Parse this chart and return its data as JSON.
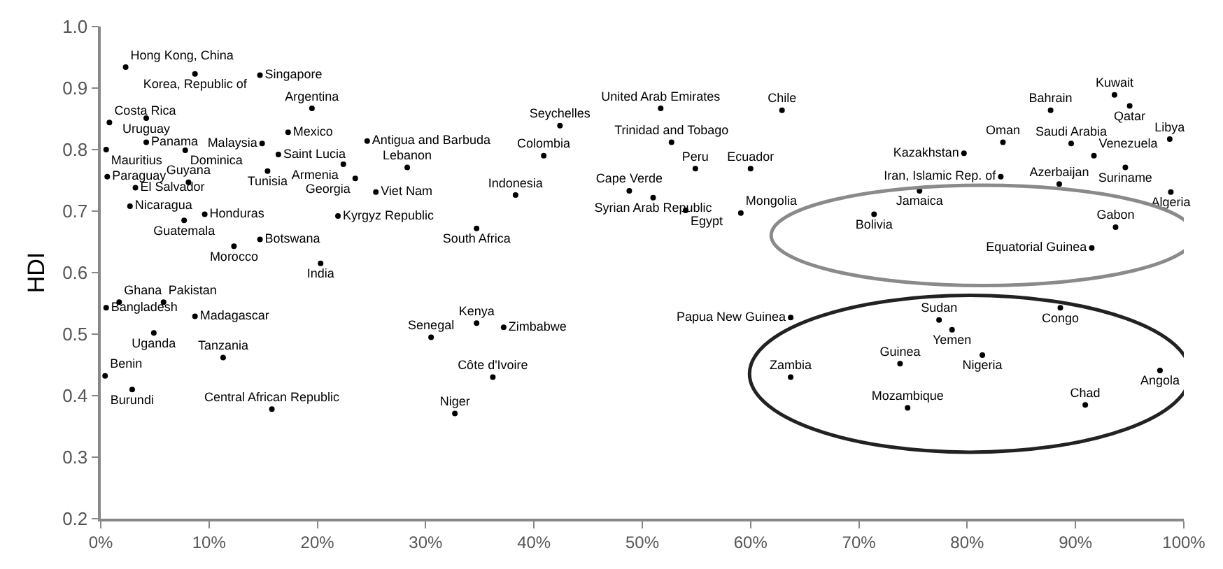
{
  "chart_data": {
    "type": "scatter",
    "ylabel": "HDI",
    "marker": "circle",
    "legend": false,
    "xlim": [
      0,
      100
    ],
    "xticks": [
      {
        "value": 0,
        "label": "0%"
      },
      {
        "value": 10,
        "label": "10%"
      },
      {
        "value": 20,
        "label": "20%"
      },
      {
        "value": 30,
        "label": "30%"
      },
      {
        "value": 40,
        "label": "40%"
      },
      {
        "value": 50,
        "label": "50%"
      },
      {
        "value": 60,
        "label": "60%"
      },
      {
        "value": 70,
        "label": "70%"
      },
      {
        "value": 80,
        "label": "80%"
      },
      {
        "value": 90,
        "label": "90%"
      },
      {
        "value": 100,
        "label": "100%"
      }
    ],
    "ylim": [
      0.2,
      1.0
    ],
    "yticks": [
      {
        "value": 0.2,
        "label": "0.2"
      },
      {
        "value": 0.3,
        "label": "0.3"
      },
      {
        "value": 0.4,
        "label": "0.4"
      },
      {
        "value": 0.5,
        "label": "0.5"
      },
      {
        "value": 0.6,
        "label": "0.6"
      },
      {
        "value": 0.7,
        "label": "0.7"
      },
      {
        "value": 0.8,
        "label": "0.8"
      },
      {
        "value": 0.9,
        "label": "0.9"
      },
      {
        "value": 1.0,
        "label": "1.0"
      }
    ],
    "series": [
      {
        "name": "Hong Kong, China",
        "color": "#000000",
        "x": [
          2.3
        ],
        "values": [
          0.934
        ]
      },
      {
        "name": "Korea, Republic of",
        "color": "#000000",
        "x": [
          8.7
        ],
        "values": [
          0.923
        ]
      },
      {
        "name": "Singapore",
        "color": "#000000",
        "x": [
          14.7
        ],
        "values": [
          0.921
        ]
      },
      {
        "name": "Argentina",
        "color": "#000000",
        "x": [
          19.5
        ],
        "values": [
          0.867
        ]
      },
      {
        "name": "Costa Rica",
        "color": "#000000",
        "x": [
          0.8
        ],
        "values": [
          0.844
        ]
      },
      {
        "name": "Uruguay",
        "color": "#000000",
        "x": [
          4.2
        ],
        "values": [
          0.851
        ]
      },
      {
        "name": "Panama",
        "color": "#000000",
        "x": [
          4.2
        ],
        "values": [
          0.812
        ]
      },
      {
        "name": "Mauritius",
        "color": "#000000",
        "x": [
          0.5
        ],
        "values": [
          0.8
        ]
      },
      {
        "name": "Dominica",
        "color": "#000000",
        "x": [
          7.8
        ],
        "values": [
          0.799
        ]
      },
      {
        "name": "Mexico",
        "color": "#000000",
        "x": [
          17.3
        ],
        "values": [
          0.828
        ]
      },
      {
        "name": "Malaysia",
        "color": "#000000",
        "x": [
          14.9
        ],
        "values": [
          0.81
        ]
      },
      {
        "name": "Antigua and Barbuda",
        "color": "#000000",
        "x": [
          24.6
        ],
        "values": [
          0.814
        ]
      },
      {
        "name": "Saint Lucia",
        "color": "#000000",
        "x": [
          16.4
        ],
        "values": [
          0.792
        ]
      },
      {
        "name": "Tunisia",
        "color": "#000000",
        "x": [
          15.4
        ],
        "values": [
          0.765
        ]
      },
      {
        "name": "Armenia",
        "color": "#000000",
        "x": [
          22.4
        ],
        "values": [
          0.776
        ]
      },
      {
        "name": "Lebanon",
        "color": "#000000",
        "x": [
          28.3
        ],
        "values": [
          0.771
        ]
      },
      {
        "name": "Georgia",
        "color": "#000000",
        "x": [
          23.5
        ],
        "values": [
          0.753
        ]
      },
      {
        "name": "Viet Nam",
        "color": "#000000",
        "x": [
          25.4
        ],
        "values": [
          0.731
        ]
      },
      {
        "name": "Paraguay",
        "color": "#000000",
        "x": [
          0.6
        ],
        "values": [
          0.756
        ]
      },
      {
        "name": "Guyana",
        "color": "#000000",
        "x": [
          8.1
        ],
        "values": [
          0.747
        ]
      },
      {
        "name": "El Salvador",
        "color": "#000000",
        "x": [
          3.2
        ],
        "values": [
          0.738
        ]
      },
      {
        "name": "Nicaragua",
        "color": "#000000",
        "x": [
          2.7
        ],
        "values": [
          0.708
        ]
      },
      {
        "name": "Honduras",
        "color": "#000000",
        "x": [
          9.6
        ],
        "values": [
          0.695
        ]
      },
      {
        "name": "Guatemala",
        "color": "#000000",
        "x": [
          7.7
        ],
        "values": [
          0.685
        ]
      },
      {
        "name": "Kyrgyz Republic",
        "color": "#000000",
        "x": [
          21.9
        ],
        "values": [
          0.692
        ]
      },
      {
        "name": "Botswana",
        "color": "#000000",
        "x": [
          14.7
        ],
        "values": [
          0.654
        ]
      },
      {
        "name": "Morocco",
        "color": "#000000",
        "x": [
          12.3
        ],
        "values": [
          0.643
        ]
      },
      {
        "name": "India",
        "color": "#000000",
        "x": [
          20.3
        ],
        "values": [
          0.615
        ]
      },
      {
        "name": "Bangladesh",
        "color": "#000000",
        "x": [
          0.5
        ],
        "values": [
          0.543
        ]
      },
      {
        "name": "Ghana",
        "color": "#000000",
        "x": [
          1.7
        ],
        "values": [
          0.552
        ]
      },
      {
        "name": "Pakistan",
        "color": "#000000",
        "x": [
          5.8
        ],
        "values": [
          0.552
        ]
      },
      {
        "name": "Madagascar",
        "color": "#000000",
        "x": [
          8.7
        ],
        "values": [
          0.529
        ]
      },
      {
        "name": "Uganda",
        "color": "#000000",
        "x": [
          4.9
        ],
        "values": [
          0.502
        ]
      },
      {
        "name": "Tanzania",
        "color": "#000000",
        "x": [
          11.3
        ],
        "values": [
          0.462
        ]
      },
      {
        "name": "Benin",
        "color": "#000000",
        "x": [
          0.4
        ],
        "values": [
          0.432
        ]
      },
      {
        "name": "Burundi",
        "color": "#000000",
        "x": [
          2.9
        ],
        "values": [
          0.41
        ]
      },
      {
        "name": "Central African Republic",
        "color": "#000000",
        "x": [
          15.8
        ],
        "values": [
          0.378
        ]
      },
      {
        "name": "United Arab Emirates",
        "color": "#000000",
        "x": [
          51.7
        ],
        "values": [
          0.867
        ]
      },
      {
        "name": "Chile",
        "color": "#000000",
        "x": [
          62.9
        ],
        "values": [
          0.864
        ]
      },
      {
        "name": "Seychelles",
        "color": "#000000",
        "x": [
          42.4
        ],
        "values": [
          0.839
        ]
      },
      {
        "name": "Trinidad and Tobago",
        "color": "#000000",
        "x": [
          52.7
        ],
        "values": [
          0.812
        ]
      },
      {
        "name": "Colombia",
        "color": "#000000",
        "x": [
          40.9
        ],
        "values": [
          0.79
        ]
      },
      {
        "name": "Peru",
        "color": "#000000",
        "x": [
          54.9
        ],
        "values": [
          0.769
        ]
      },
      {
        "name": "Ecuador",
        "color": "#000000",
        "x": [
          60.0
        ],
        "values": [
          0.769
        ]
      },
      {
        "name": "Indonesia",
        "color": "#000000",
        "x": [
          38.3
        ],
        "values": [
          0.726
        ]
      },
      {
        "name": "Cape Verde",
        "color": "#000000",
        "x": [
          48.8
        ],
        "values": [
          0.733
        ]
      },
      {
        "name": "Syrian Arab Republic",
        "color": "#000000",
        "x": [
          51.0
        ],
        "values": [
          0.722
        ]
      },
      {
        "name": "Egypt",
        "color": "#000000",
        "x": [
          54.0
        ],
        "values": [
          0.701
        ]
      },
      {
        "name": "Mongolia",
        "color": "#000000",
        "x": [
          59.1
        ],
        "values": [
          0.697
        ]
      },
      {
        "name": "South Africa",
        "color": "#000000",
        "x": [
          34.7
        ],
        "values": [
          0.672
        ]
      },
      {
        "name": "Senegal",
        "color": "#000000",
        "x": [
          30.5
        ],
        "values": [
          0.495
        ]
      },
      {
        "name": "Kenya",
        "color": "#000000",
        "x": [
          34.7
        ],
        "values": [
          0.518
        ]
      },
      {
        "name": "Zimbabwe",
        "color": "#000000",
        "x": [
          37.2
        ],
        "values": [
          0.511
        ]
      },
      {
        "name": "Côte d'Ivoire",
        "color": "#000000",
        "x": [
          36.2
        ],
        "values": [
          0.43
        ]
      },
      {
        "name": "Niger",
        "color": "#000000",
        "x": [
          32.7
        ],
        "values": [
          0.371
        ]
      },
      {
        "name": "Papua New Guinea",
        "color": "#000000",
        "x": [
          63.7
        ],
        "values": [
          0.527
        ]
      },
      {
        "name": "Bahrain",
        "color": "#000000",
        "x": [
          87.7
        ],
        "values": [
          0.864
        ]
      },
      {
        "name": "Kuwait",
        "color": "#000000",
        "x": [
          93.6
        ],
        "values": [
          0.889
        ]
      },
      {
        "name": "Qatar",
        "color": "#000000",
        "x": [
          95.0
        ],
        "values": [
          0.871
        ]
      },
      {
        "name": "Libya",
        "color": "#000000",
        "x": [
          98.7
        ],
        "values": [
          0.817
        ]
      },
      {
        "name": "Oman",
        "color": "#000000",
        "x": [
          83.3
        ],
        "values": [
          0.812
        ]
      },
      {
        "name": "Saudi Arabia",
        "color": "#000000",
        "x": [
          89.6
        ],
        "values": [
          0.81
        ]
      },
      {
        "name": "Kazakhstan",
        "color": "#000000",
        "x": [
          79.7
        ],
        "values": [
          0.794
        ]
      },
      {
        "name": "Venezuela",
        "color": "#000000",
        "x": [
          91.7
        ],
        "values": [
          0.79
        ]
      },
      {
        "name": "Suriname",
        "color": "#000000",
        "x": [
          94.6
        ],
        "values": [
          0.771
        ]
      },
      {
        "name": "Iran, Islamic Rep. of",
        "color": "#000000",
        "x": [
          83.1
        ],
        "values": [
          0.756
        ]
      },
      {
        "name": "Azerbaijan",
        "color": "#000000",
        "x": [
          88.5
        ],
        "values": [
          0.744
        ]
      },
      {
        "name": "Jamaica",
        "color": "#000000",
        "x": [
          75.6
        ],
        "values": [
          0.733
        ]
      },
      {
        "name": "Algeria",
        "color": "#000000",
        "x": [
          98.8
        ],
        "values": [
          0.731
        ]
      },
      {
        "name": "Bolivia",
        "color": "#000000",
        "x": [
          71.4
        ],
        "values": [
          0.695
        ]
      },
      {
        "name": "Gabon",
        "color": "#000000",
        "x": [
          93.7
        ],
        "values": [
          0.674
        ]
      },
      {
        "name": "Equatorial Guinea",
        "color": "#000000",
        "x": [
          91.5
        ],
        "values": [
          0.64
        ]
      },
      {
        "name": "Congo",
        "color": "#000000",
        "x": [
          88.6
        ],
        "values": [
          0.543
        ]
      },
      {
        "name": "Sudan",
        "color": "#000000",
        "x": [
          77.4
        ],
        "values": [
          0.523
        ]
      },
      {
        "name": "Yemen",
        "color": "#000000",
        "x": [
          78.6
        ],
        "values": [
          0.507
        ]
      },
      {
        "name": "Nigeria",
        "color": "#000000",
        "x": [
          81.4
        ],
        "values": [
          0.466
        ]
      },
      {
        "name": "Guinea",
        "color": "#000000",
        "x": [
          73.8
        ],
        "values": [
          0.452
        ]
      },
      {
        "name": "Zambia",
        "color": "#000000",
        "x": [
          63.7
        ],
        "values": [
          0.43
        ]
      },
      {
        "name": "Angola",
        "color": "#000000",
        "x": [
          97.8
        ],
        "values": [
          0.441
        ]
      },
      {
        "name": "Chad",
        "color": "#000000",
        "x": [
          90.9
        ],
        "values": [
          0.385
        ]
      },
      {
        "name": "Mozambique",
        "color": "#000000",
        "x": [
          74.5
        ],
        "values": [
          0.38
        ]
      }
    ]
  }
}
